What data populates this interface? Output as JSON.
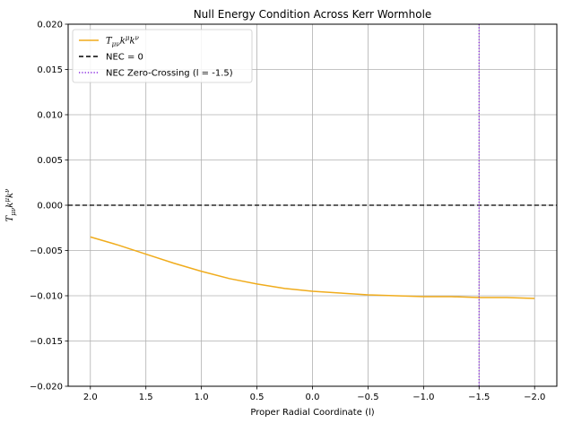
{
  "chart_data": {
    "type": "line",
    "title": "Null Energy Condition Across Kerr Wormhole",
    "xlabel": "Proper Radial Coordinate (l)",
    "ylabel": "T_{μν}k^{μ}k^{ν}",
    "xlim": [
      2.2,
      -2.2
    ],
    "ylim": [
      -0.02,
      0.02
    ],
    "x_inverted": true,
    "grid": true,
    "legend_position": "top-left",
    "x_ticks": [
      2.0,
      1.5,
      1.0,
      0.5,
      0.0,
      -0.5,
      -1.0,
      -1.5,
      -2.0
    ],
    "x_tick_labels": [
      "2.0",
      "1.5",
      "1.0",
      "0.5",
      "0.0",
      "−0.5",
      "−1.0",
      "−1.5",
      "−2.0"
    ],
    "y_ticks": [
      -0.02,
      -0.015,
      -0.01,
      -0.005,
      0.0,
      0.005,
      0.01,
      0.015,
      0.02
    ],
    "y_tick_labels": [
      "−0.020",
      "−0.015",
      "−0.010",
      "−0.005",
      "0.000",
      "0.005",
      "0.010",
      "0.015",
      "0.020"
    ],
    "series": [
      {
        "name": "T_{μν}k^{μ}k^{ν}",
        "color": "#f0ac1c",
        "style": "solid",
        "x": [
          2.0,
          1.75,
          1.5,
          1.25,
          1.0,
          0.75,
          0.5,
          0.25,
          0.0,
          -0.25,
          -0.5,
          -0.75,
          -1.0,
          -1.25,
          -1.5,
          -1.75,
          -2.0
        ],
        "y": [
          -0.0035,
          -0.0044,
          -0.0054,
          -0.0064,
          -0.0073,
          -0.0081,
          -0.0087,
          -0.0092,
          -0.0095,
          -0.0097,
          -0.0099,
          -0.01,
          -0.0101,
          -0.0101,
          -0.0102,
          -0.0102,
          -0.0103
        ]
      },
      {
        "name": "NEC = 0",
        "color": "#000000",
        "style": "dashed",
        "y_const": 0.0
      },
      {
        "name": "NEC Zero-Crossing (l = -1.5)",
        "color": "#8a2be2",
        "style": "dotted",
        "x_const": -1.5
      }
    ]
  }
}
